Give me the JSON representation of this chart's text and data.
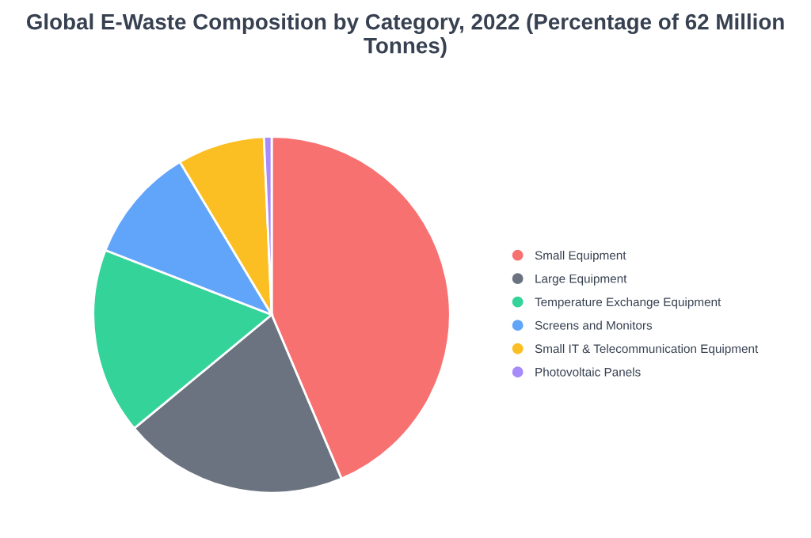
{
  "chart_data": {
    "type": "pie",
    "title": "Global E-Waste Composition by Category, 2022 (Percentage of 62 Million Tonnes)",
    "categories": [
      "Small Equipment",
      "Large Equipment",
      "Temperature Exchange Equipment",
      "Screens and Monitors",
      "Small IT & Telecommunication Equipment",
      "Photovoltaic Panels"
    ],
    "values": [
      43.6,
      20.4,
      16.9,
      10.5,
      7.9,
      0.7
    ],
    "colors": [
      "#f87171",
      "#6b7280",
      "#34d399",
      "#60a5fa",
      "#fbbf24",
      "#a78bfa"
    ],
    "legend": "right"
  }
}
